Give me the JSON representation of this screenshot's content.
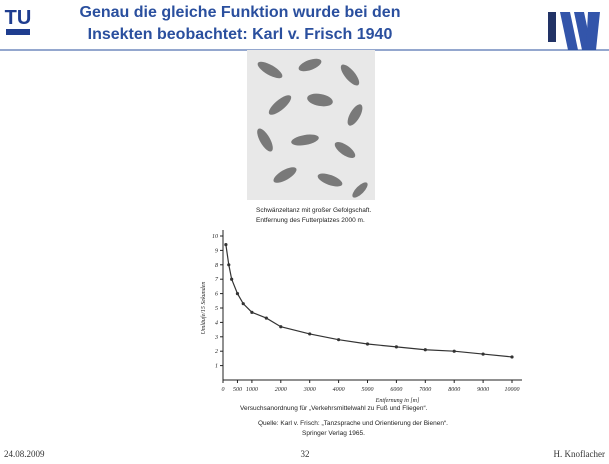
{
  "header": {
    "title_lines": [
      "Genau die gleiche Funktion wurde bei den",
      "Insekten beobachtet:  Karl v. Frisch 1940"
    ]
  },
  "figure_caption": [
    "Schwänzeltanz mit großer Gefolgschaft.",
    "Entfernung des Futterplatzes 2000 m."
  ],
  "chart_data": {
    "type": "line",
    "x_label": "Entfernung in [m]",
    "y_label": "Umläufe/15 Sekunden",
    "x": [
      100,
      200,
      300,
      500,
      700,
      1000,
      1500,
      2000,
      3000,
      4000,
      5000,
      6000,
      7000,
      8000,
      9000,
      10000
    ],
    "series": [
      {
        "color": "#333333",
        "values": [
          9.4,
          8.0,
          7.0,
          6.0,
          5.3,
          4.7,
          4.3,
          3.7,
          3.2,
          2.8,
          2.5,
          2.3,
          2.1,
          2.0,
          1.8,
          1.6
        ]
      }
    ],
    "xlim": [
      0,
      10000
    ],
    "ylim": [
      0,
      10
    ],
    "xticks": [
      0,
      500,
      1000,
      2000,
      3000,
      4000,
      5000,
      6000,
      7000,
      8000,
      9000,
      10000
    ],
    "yticks": [
      1,
      2,
      3,
      4,
      5,
      6,
      7,
      8,
      9,
      10
    ]
  },
  "chart_caption": [
    "Versuchsanordnung für „Verkehrsmittelwahl zu Fuß und Fliegen“.",
    "Quelle: Karl v. Frisch: „Tanzsprache und Orientierung der Bienen“.",
    "Springer Verlag 1965."
  ],
  "footer": {
    "date": "24.08.2009",
    "page": "32",
    "author": "H. Knoflacher"
  }
}
